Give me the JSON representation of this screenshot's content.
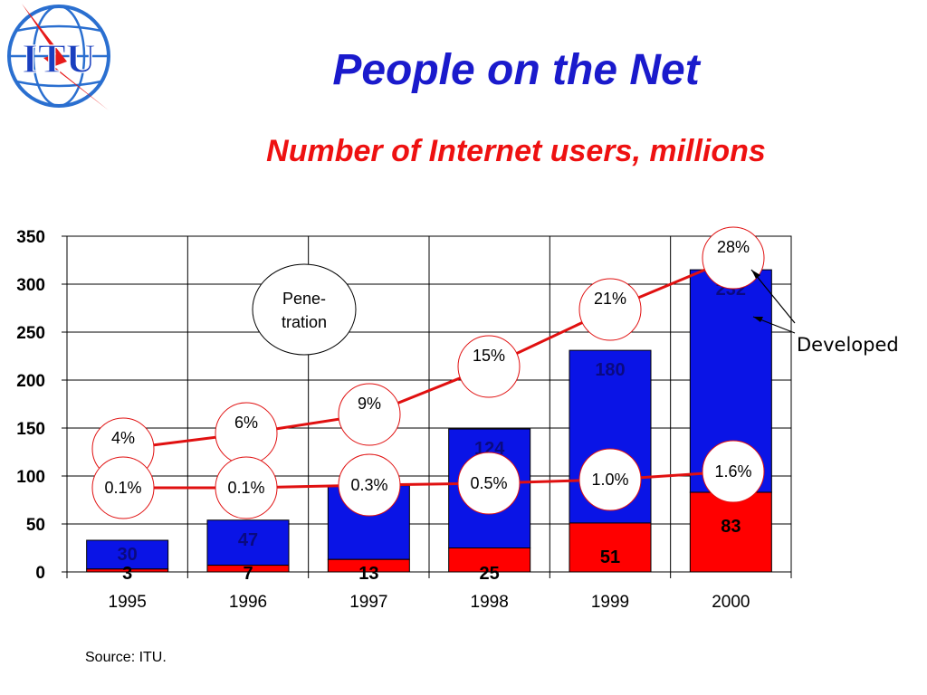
{
  "header": {
    "title": "People on the Net",
    "subtitle": "Number of Internet users, millions"
  },
  "logo": {
    "text": "ITU",
    "icon": "itu-globe-logo"
  },
  "source": "Source: ITU.",
  "colors": {
    "title": "#1a1acc",
    "subtitle": "#ee1111",
    "developed_bar": "#0a14e6",
    "other_bar": "#ff0000",
    "penetration_line": "#e01010"
  },
  "chart_data": {
    "type": "bar",
    "stacked": true,
    "categories": [
      "1995",
      "1996",
      "1997",
      "1998",
      "1999",
      "2000"
    ],
    "ylim": [
      0,
      350
    ],
    "yticks": [
      0,
      50,
      100,
      150,
      200,
      250,
      300,
      350
    ],
    "grid": true,
    "series": [
      {
        "role": "bottom",
        "values": [
          3,
          7,
          13,
          25,
          51,
          83
        ],
        "color": "#ff0000"
      },
      {
        "role": "top",
        "name": "Developed",
        "values": [
          30,
          47,
          77,
          124,
          180,
          232
        ],
        "color": "#0a14e6"
      }
    ],
    "overlay_lines": [
      {
        "labels": [
          "4%",
          "6%",
          "9%",
          "15%",
          "21%",
          "28%"
        ]
      },
      {
        "labels": [
          "0.1%",
          "0.1%",
          "0.3%",
          "0.5%",
          "1.0%",
          "1.6%"
        ]
      }
    ],
    "annotations": {
      "penetration": [
        "Pene-",
        "tration"
      ],
      "developed": "Developed"
    }
  }
}
